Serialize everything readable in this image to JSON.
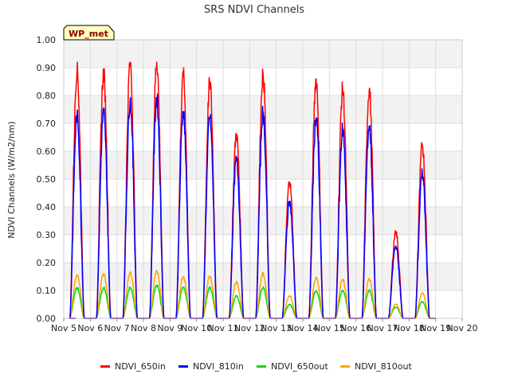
{
  "chart_data": {
    "type": "line",
    "title": "SRS NDVI Channels",
    "xlabel": "",
    "ylabel": "NDVI Channels (W/m2/nm)",
    "badge": "WP_met",
    "xlim": [
      5,
      20
    ],
    "ylim": [
      0,
      1.0
    ],
    "x_tick_labels": [
      "Nov 5",
      "Nov 6",
      "Nov 7",
      "Nov 8",
      "Nov 9",
      "Nov 10",
      "Nov 11",
      "Nov 12",
      "Nov 13",
      "Nov 14",
      "Nov 15",
      "Nov 16",
      "Nov 17",
      "Nov 18",
      "Nov 19",
      "Nov 20"
    ],
    "y_tick_labels": [
      "0.00",
      "0.10",
      "0.20",
      "0.30",
      "0.40",
      "0.50",
      "0.60",
      "0.70",
      "0.80",
      "0.90",
      "1.00"
    ],
    "grid": true,
    "legend_position": "bottom",
    "colors": {
      "NDVI_650in": "#ff0000",
      "NDVI_810in": "#0000ff",
      "NDVI_650out": "#00dd00",
      "NDVI_810out": "#ffa500",
      "band": "#f2f2f2",
      "grid": "#dddddd",
      "badge_bg": "#ffffc0"
    },
    "day_peaks": [
      {
        "day": 5.5,
        "NDVI_650in": 0.89,
        "NDVI_810in": 0.73,
        "NDVI_650out": 0.11,
        "NDVI_810out": 0.155
      },
      {
        "day": 6.5,
        "NDVI_650in": 0.88,
        "NDVI_810in": 0.74,
        "NDVI_650out": 0.11,
        "NDVI_810out": 0.16
      },
      {
        "day": 7.5,
        "NDVI_650in": 0.92,
        "NDVI_810in": 0.78,
        "NDVI_650out": 0.11,
        "NDVI_810out": 0.165
      },
      {
        "day": 8.5,
        "NDVI_650in": 0.92,
        "NDVI_810in": 0.79,
        "NDVI_650out": 0.12,
        "NDVI_810out": 0.17
      },
      {
        "day": 9.5,
        "NDVI_650in": 0.87,
        "NDVI_810in": 0.74,
        "NDVI_650out": 0.11,
        "NDVI_810out": 0.15
      },
      {
        "day": 10.5,
        "NDVI_650in": 0.85,
        "NDVI_810in": 0.72,
        "NDVI_650out": 0.11,
        "NDVI_810out": 0.15
      },
      {
        "day": 11.5,
        "NDVI_650in": 0.66,
        "NDVI_810in": 0.57,
        "NDVI_650out": 0.08,
        "NDVI_810out": 0.13
      },
      {
        "day": 12.5,
        "NDVI_650in": 0.88,
        "NDVI_810in": 0.74,
        "NDVI_650out": 0.11,
        "NDVI_810out": 0.16
      },
      {
        "day": 13.5,
        "NDVI_650in": 0.49,
        "NDVI_810in": 0.42,
        "NDVI_650out": 0.05,
        "NDVI_810out": 0.08
      },
      {
        "day": 14.5,
        "NDVI_650in": 0.86,
        "NDVI_810in": 0.72,
        "NDVI_650out": 0.1,
        "NDVI_810out": 0.145
      },
      {
        "day": 15.5,
        "NDVI_650in": 0.82,
        "NDVI_810in": 0.68,
        "NDVI_650out": 0.1,
        "NDVI_810out": 0.14
      },
      {
        "day": 16.5,
        "NDVI_650in": 0.82,
        "NDVI_810in": 0.69,
        "NDVI_650out": 0.1,
        "NDVI_810out": 0.14
      },
      {
        "day": 17.5,
        "NDVI_650in": 0.31,
        "NDVI_810in": 0.26,
        "NDVI_650out": 0.04,
        "NDVI_810out": 0.05
      },
      {
        "day": 18.5,
        "NDVI_650in": 0.62,
        "NDVI_810in": 0.52,
        "NDVI_650out": 0.06,
        "NDVI_810out": 0.09
      }
    ],
    "series": [
      {
        "name": "NDVI_650in"
      },
      {
        "name": "NDVI_810in"
      },
      {
        "name": "NDVI_650out"
      },
      {
        "name": "NDVI_810out"
      }
    ]
  }
}
